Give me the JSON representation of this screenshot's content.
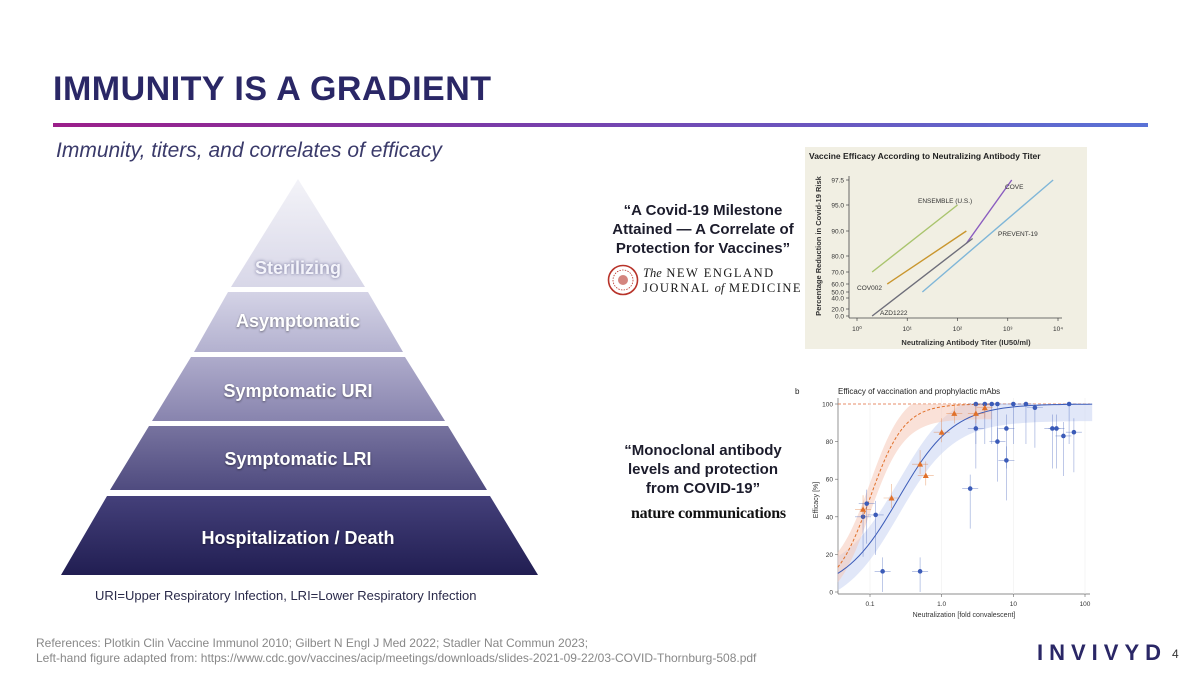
{
  "slide": {
    "title": "IMMUNITY IS A GRADIENT",
    "subtitle": "Immunity, titers, and correlates of efficacy",
    "footnote": "URI=Upper Respiratory Infection, LRI=Lower Respiratory Infection",
    "references_line1": "References: Plotkin Clin Vaccine Immunol 2010; Gilbert N Engl J Med 2022; Stadler Nat Commun 2023;",
    "references_line2": "Left-hand figure adapted from: https://www.cdc.gov/vaccines/acip/meetings/downloads/slides-2021-09-22/03-COVID-Thornburg-508.pdf",
    "logo": "INVIVYD",
    "page_number": "4"
  },
  "pyramid": {
    "levels": [
      {
        "label": "Sterilizing",
        "color": "#e6e6f1"
      },
      {
        "label": "Asymptomatic",
        "color": "#c7c5dc"
      },
      {
        "label": "Symptomatic URI",
        "color": "#9b98bd"
      },
      {
        "label": "Symptomatic LRI",
        "color": "#5f5c8e"
      },
      {
        "label": "Hospitalization / Death",
        "color": "#2f2c64"
      }
    ]
  },
  "quotes": {
    "nejm_quote": "“A Covid-19 Milestone Attained — A Correlate of Protection for Vaccines”",
    "nejm_name_the": "The",
    "nejm_name_line1": "NEW ENGLAND",
    "nejm_name_journal": "JOURNAL",
    "nejm_name_of": "of",
    "nejm_name_medicine": "MEDICINE",
    "natcom_quote": "“Monoclonal antibody levels and protection from COVID-19”",
    "natcom_name": "nature communications"
  },
  "chart_data": [
    {
      "type": "line",
      "title": "Vaccine Efficacy According to Neutralizing Antibody Titer",
      "xlabel": "Neutralizing Antibody Titer (IU50/ml)",
      "ylabel": "Percentage Reduction in Covid-19 Risk",
      "x_scale": "log",
      "x_tick_labels": [
        "10⁰",
        "10¹",
        "10²",
        "10³",
        "10⁴"
      ],
      "x_ticks": [
        1,
        10,
        100,
        1000,
        10000
      ],
      "y_tick_labels": [
        "0.0",
        "20.0",
        "40.0",
        "50.0",
        "60.0",
        "70.0",
        "80.0",
        "90.0",
        "95.0",
        "97.5"
      ],
      "series": [
        {
          "name": "ENSEMBLE (U.S.)",
          "color": "#a9c46d",
          "x": [
            2,
            100
          ],
          "y": [
            70.0,
            95.0
          ]
        },
        {
          "name": "COVE",
          "color": "#8a5cc0",
          "x": [
            150,
            1200
          ],
          "y": [
            85.0,
            97.5
          ]
        },
        {
          "name": "PREVENT-19",
          "color": "#7fb6d8",
          "x": [
            20,
            8000
          ],
          "y": [
            50.0,
            97.5
          ]
        },
        {
          "name": "COV002",
          "color": "#c9962e",
          "x": [
            4,
            150
          ],
          "y": [
            60.0,
            90.0
          ]
        },
        {
          "name": "AZD1222",
          "color": "#6e6e7a",
          "x": [
            2,
            200
          ],
          "y": [
            0.0,
            87.0
          ]
        }
      ]
    },
    {
      "type": "scatter",
      "panel_label": "b",
      "title": "Efficacy of vaccination and prophylactic mAbs",
      "xlabel": "Neutralization [fold convalescent]",
      "ylabel": "Efficacy [%]",
      "x_scale": "log",
      "x_tick_labels": [
        "0.1",
        "1.0",
        "10",
        "100"
      ],
      "x_ticks": [
        0.1,
        1,
        10,
        100
      ],
      "y_tick_labels": [
        "0",
        "20",
        "40",
        "60",
        "80",
        "100"
      ],
      "y_ticks": [
        0,
        20,
        40,
        60,
        80,
        100
      ],
      "ylim": [
        0,
        100
      ],
      "series": [
        {
          "name": "",
          "color": "#3b5bb8",
          "points": [
            [
              0.08,
              40
            ],
            [
              0.09,
              47
            ],
            [
              0.12,
              41
            ],
            [
              0.15,
              11
            ],
            [
              0.5,
              11
            ],
            [
              2.5,
              55
            ],
            [
              3,
              87
            ],
            [
              3,
              100
            ],
            [
              4,
              100
            ],
            [
              5,
              100
            ],
            [
              6,
              100
            ],
            [
              6,
              80
            ],
            [
              8,
              87
            ],
            [
              8,
              70
            ],
            [
              10,
              100
            ],
            [
              15,
              100
            ],
            [
              20,
              98
            ],
            [
              35,
              87
            ],
            [
              40,
              87
            ],
            [
              50,
              83
            ],
            [
              60,
              100
            ],
            [
              70,
              85
            ]
          ]
        },
        {
          "name": "",
          "color": "#e0702a",
          "points": [
            [
              0.08,
              44
            ],
            [
              0.2,
              50
            ],
            [
              0.5,
              68
            ],
            [
              0.6,
              62
            ],
            [
              1,
              85
            ],
            [
              1.5,
              95
            ],
            [
              3,
              95
            ],
            [
              4,
              98
            ]
          ]
        }
      ]
    }
  ]
}
